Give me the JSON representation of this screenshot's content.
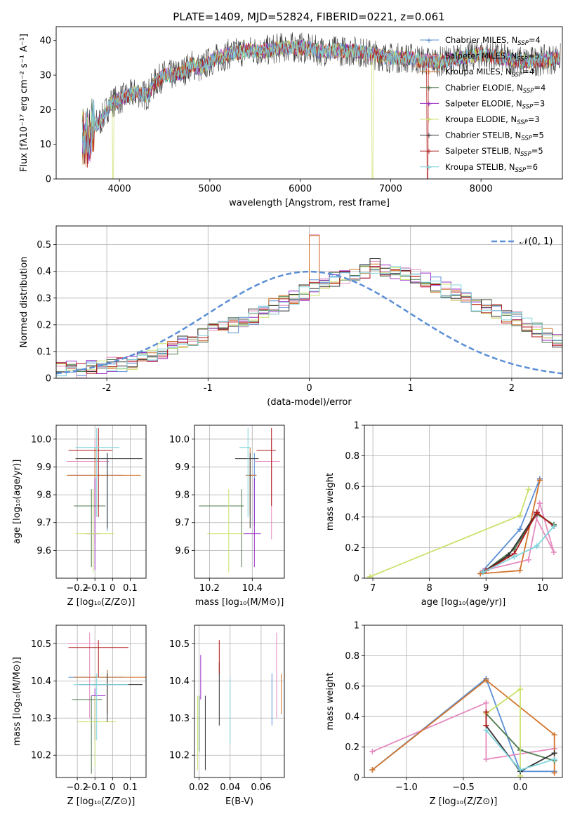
{
  "title": "PLATE=1409, MJD=52824, FIBERID=0221, z=0.061",
  "colors": {
    "chabrier_miles": "#5b8fd6",
    "salpeter_miles": "#e58bc0",
    "kroupa_miles": "#d2762e",
    "chabrier_elodie": "#4e7a4e",
    "salpeter_elodie": "#9b32c8",
    "kroupa_elodie": "#c9e26b",
    "chabrier_stelib": "#333333",
    "salpeter_stelib": "#b01818",
    "kroupa_stelib": "#7fd4dc",
    "gauss": "#5b8fd6",
    "grid": "#b0b0b0"
  },
  "legend_spectrum": [
    {
      "name": "Chabrier MILES, N",
      "sub": "SSP",
      "suffix": "=4",
      "color": "chabrier_miles"
    },
    {
      "name": "Salpeter MILES, N",
      "sub": "SSP",
      "suffix": "=5",
      "color": "salpeter_miles"
    },
    {
      "name": "Kroupa MILES, N",
      "sub": "SSP",
      "suffix": "=4",
      "color": "kroupa_miles"
    },
    {
      "name": "Chabrier ELODIE, N",
      "sub": "SSP",
      "suffix": "=4",
      "color": "chabrier_elodie"
    },
    {
      "name": "Salpeter ELODIE, N",
      "sub": "SSP",
      "suffix": "=3",
      "color": "salpeter_elodie"
    },
    {
      "name": "Kroupa ELODIE, N",
      "sub": "SSP",
      "suffix": "=3",
      "color": "kroupa_elodie"
    },
    {
      "name": "Chabrier STELIB, N",
      "sub": "SSP",
      "suffix": "=5",
      "color": "chabrier_stelib"
    },
    {
      "name": "Salpeter STELIB, N",
      "sub": "SSP",
      "suffix": "=5",
      "color": "salpeter_stelib"
    },
    {
      "name": "Kroupa STELIB, N",
      "sub": "SSP",
      "suffix": "=6",
      "color": "kroupa_stelib"
    }
  ],
  "chart_data": [
    {
      "id": "spectrum",
      "type": "line",
      "xlabel": "wavelength [Angstrom, rest frame]",
      "ylabel": "Flux [fλ10⁻¹⁷ erg cm⁻² s⁻¹ A⁻¹]",
      "xlim": [
        3300,
        8900
      ],
      "ylim": [
        0,
        44
      ],
      "xticks": [
        4000,
        5000,
        6000,
        7000,
        8000
      ],
      "yticks": [
        0,
        10,
        20,
        30,
        40
      ],
      "data_x_range": [
        3590,
        8880
      ],
      "series_trend": {
        "x": [
          3590,
          3650,
          3700,
          3800,
          3900,
          4000,
          4100,
          4200,
          4300,
          4400,
          4500,
          4600,
          4700,
          4800,
          4900,
          5000,
          5200,
          5400,
          5600,
          5800,
          6000,
          6200,
          6400,
          6600,
          6800,
          7000,
          7200,
          7400,
          7600,
          7800,
          8000,
          8200,
          8400,
          8600,
          8880
        ],
        "y": [
          12,
          11,
          15,
          17,
          22,
          23,
          24,
          25,
          24,
          28,
          30,
          30,
          31,
          33,
          32,
          34,
          36,
          37,
          37,
          38,
          38,
          37,
          37,
          37,
          36,
          35,
          35,
          34,
          34,
          35,
          36,
          35,
          34,
          34,
          35
        ]
      },
      "dips": [
        {
          "series": "kroupa_elodie",
          "x": 3930,
          "y": 0
        },
        {
          "series": "kroupa_elodie",
          "x": 6800,
          "y": 0
        },
        {
          "series": "salpeter_stelib",
          "x": 7410,
          "y": 0
        }
      ]
    },
    {
      "id": "residual_hist",
      "type": "step",
      "xlabel": "(data-model)/error",
      "ylabel": "Normed distribution",
      "xlim": [
        -2.5,
        2.5
      ],
      "ylim": [
        0,
        0.57
      ],
      "xticks": [
        -2,
        -1,
        0,
        1,
        2
      ],
      "yticks": [
        0.0,
        0.1,
        0.2,
        0.3,
        0.4,
        0.5
      ],
      "legend": "𝒩(0, 1)",
      "bin_width": 0.1,
      "bin_start": -2.5,
      "base": [
        0.03,
        0.04,
        0.03,
        0.04,
        0.04,
        0.05,
        0.05,
        0.06,
        0.07,
        0.09,
        0.1,
        0.11,
        0.13,
        0.14,
        0.16,
        0.18,
        0.19,
        0.2,
        0.22,
        0.23,
        0.25,
        0.27,
        0.28,
        0.3,
        0.32,
        0.34,
        0.36,
        0.37,
        0.38,
        0.39,
        0.4,
        0.42,
        0.41,
        0.4,
        0.39,
        0.38,
        0.37,
        0.35,
        0.33,
        0.32,
        0.3,
        0.28,
        0.27,
        0.25,
        0.23,
        0.22,
        0.2,
        0.18,
        0.16,
        0.14,
        0.13,
        0.12,
        0.1,
        0.09,
        0.08,
        0.07,
        0.06,
        0.05,
        0.04,
        0.04
      ],
      "peak_bin": {
        "x": 0.0,
        "y": 0.54
      }
    },
    {
      "id": "age_vs_Z",
      "type": "errorbar",
      "xlabel": "Z [log₁₀(Z/Z⊙)]",
      "ylabel": "age  [log₁₀(age/yr)]",
      "xlim": [
        -0.32,
        0.19
      ],
      "ylim": [
        9.5,
        10.05
      ],
      "xticks": [
        -0.2,
        -0.1,
        0.0,
        0.1
      ],
      "ytick_labels": [
        "9.6",
        "9.7",
        "9.8",
        "9.9",
        "10.0"
      ],
      "points": [
        {
          "s": "chabrier_miles",
          "x": -0.03,
          "xerr": [
            0.22,
            0.09
          ],
          "y": 9.87,
          "yerr": [
            0.2,
            0.08
          ]
        },
        {
          "s": "salpeter_miles",
          "x": -0.1,
          "xerr": [
            0.16,
            0.08
          ],
          "y": 9.92,
          "yerr": [
            0.3,
            0.08
          ]
        },
        {
          "s": "kroupa_miles",
          "x": -0.1,
          "xerr": [
            0.16,
            0.26
          ],
          "y": 9.87,
          "yerr": [
            0.15,
            0.1
          ]
        },
        {
          "s": "chabrier_elodie",
          "x": -0.12,
          "xerr": [
            0.1,
            0.08
          ],
          "y": 9.76,
          "yerr": [
            0.22,
            0.06
          ]
        },
        {
          "s": "salpeter_elodie",
          "x": -0.1,
          "xerr": [
            0.05,
            0.03
          ],
          "y": 9.66,
          "yerr": [
            0.13,
            0.2
          ]
        },
        {
          "s": "kroupa_elodie",
          "x": -0.11,
          "xerr": [
            0.1,
            0.12
          ],
          "y": 9.66,
          "yerr": [
            0.14,
            0.16
          ]
        },
        {
          "s": "chabrier_stelib",
          "x": -0.03,
          "xerr": [
            0.18,
            0.2
          ],
          "y": 9.93,
          "yerr": [
            0.25,
            0.02
          ]
        },
        {
          "s": "salpeter_stelib",
          "x": -0.08,
          "xerr": [
            0.17,
            0.08
          ],
          "y": 9.96,
          "yerr": [
            0.24,
            0.08
          ]
        },
        {
          "s": "kroupa_stelib",
          "x": -0.09,
          "xerr": [
            0.12,
            0.13
          ],
          "y": 9.97,
          "yerr": [
            0.25,
            0.07
          ]
        }
      ]
    },
    {
      "id": "age_vs_mass",
      "type": "errorbar",
      "xlabel": "mass [log₁₀(M/M⊙)]",
      "ylabel": "",
      "xlim": [
        10.13,
        10.55
      ],
      "ylim": [
        9.5,
        10.05
      ],
      "xticks": [
        10.2,
        10.4
      ],
      "ytick_labels": [
        "9.6",
        "9.7",
        "9.8",
        "9.9",
        "10.0"
      ],
      "points": [
        {
          "s": "chabrier_miles",
          "x": 10.41,
          "xerr": [
            0.04,
            0.01
          ],
          "y": 9.87,
          "yerr": [
            0.18,
            0.08
          ]
        },
        {
          "s": "salpeter_miles",
          "x": 10.49,
          "xerr": [
            0.08,
            0.04
          ],
          "y": 9.92,
          "yerr": [
            0.28,
            0.08
          ]
        },
        {
          "s": "kroupa_miles",
          "x": 10.39,
          "xerr": [
            0.02,
            0.03
          ],
          "y": 9.87,
          "yerr": [
            0.14,
            0.1
          ]
        },
        {
          "s": "chabrier_elodie",
          "x": 10.35,
          "xerr": [
            0.2,
            0.01
          ],
          "y": 9.76,
          "yerr": [
            0.22,
            0.06
          ]
        },
        {
          "s": "salpeter_elodie",
          "x": 10.41,
          "xerr": [
            0.05,
            0.03
          ],
          "y": 9.66,
          "yerr": [
            0.12,
            0.2
          ]
        },
        {
          "s": "kroupa_elodie",
          "x": 10.29,
          "xerr": [
            0.1,
            0.07
          ],
          "y": 9.66,
          "yerr": [
            0.14,
            0.16
          ]
        },
        {
          "s": "chabrier_stelib",
          "x": 10.39,
          "xerr": [
            0.07,
            0.04
          ],
          "y": 9.93,
          "yerr": [
            0.25,
            0.02
          ]
        },
        {
          "s": "salpeter_stelib",
          "x": 10.49,
          "xerr": [
            0.07,
            0.02
          ],
          "y": 9.96,
          "yerr": [
            0.2,
            0.08
          ]
        },
        {
          "s": "kroupa_stelib",
          "x": 10.38,
          "xerr": [
            0.04,
            0.01
          ],
          "y": 9.97,
          "yerr": [
            0.25,
            0.07
          ]
        }
      ]
    },
    {
      "id": "weight_vs_age",
      "type": "line",
      "xlabel": "age  [log₁₀(age/yr)]",
      "ylabel": "mass weight",
      "xlim": [
        6.85,
        10.35
      ],
      "ylim": [
        0,
        1.0
      ],
      "xticks": [
        7,
        8,
        9,
        10
      ],
      "yticks": [
        0.0,
        0.2,
        0.4,
        0.6,
        0.8,
        1.0
      ],
      "series": [
        {
          "s": "chabrier_miles",
          "x": [
            8.9,
            9.6,
            9.95
          ],
          "y": [
            0.03,
            0.32,
            0.65
          ]
        },
        {
          "s": "salpeter_miles",
          "x": [
            8.95,
            9.75,
            9.95,
            10.2,
            9.85
          ],
          "y": [
            0.05,
            0.12,
            0.49,
            0.17,
            0.42
          ]
        },
        {
          "s": "kroupa_miles",
          "x": [
            8.9,
            9.6,
            9.95
          ],
          "y": [
            0.03,
            0.05,
            0.64
          ]
        },
        {
          "s": "chabrier_elodie",
          "x": [
            8.95,
            9.5,
            9.9,
            10.2
          ],
          "y": [
            0.04,
            0.19,
            0.42,
            0.35
          ]
        },
        {
          "s": "kroupa_elodie",
          "x": [
            6.95,
            9.6,
            9.75
          ],
          "y": [
            0.01,
            0.41,
            0.58
          ]
        },
        {
          "s": "chabrier_stelib",
          "x": [
            8.95,
            9.4,
            9.9,
            10.2
          ],
          "y": [
            0.04,
            0.15,
            0.43,
            0.34
          ]
        },
        {
          "s": "salpeter_stelib",
          "x": [
            9.0,
            9.5,
            9.9,
            10.2
          ],
          "y": [
            0.05,
            0.16,
            0.43,
            0.34
          ]
        },
        {
          "s": "kroupa_stelib",
          "x": [
            8.95,
            9.5,
            9.9,
            10.2
          ],
          "y": [
            0.04,
            0.14,
            0.21,
            0.34
          ]
        }
      ]
    },
    {
      "id": "mass_vs_Z",
      "type": "errorbar",
      "xlabel": "Z [log₁₀(Z/Z⊙)]",
      "ylabel": "mass [log₁₀(M/M⊙)]",
      "xlim": [
        -0.32,
        0.19
      ],
      "ylim": [
        10.14,
        10.55
      ],
      "xticks": [
        -0.2,
        -0.1,
        0.0,
        0.1
      ],
      "ytick_labels": [
        "10.2",
        "10.3",
        "10.4",
        "10.5"
      ],
      "points": [
        {
          "s": "chabrier_miles",
          "x": -0.03,
          "xerr": [
            0.22,
            0.09
          ],
          "y": 10.41,
          "yerr": [
            0.1,
            0.02
          ]
        },
        {
          "s": "salpeter_miles",
          "x": -0.13,
          "xerr": [
            0.13,
            0.06
          ],
          "y": 10.5,
          "yerr": [
            0.2,
            0.03
          ]
        },
        {
          "s": "kroupa_miles",
          "x": -0.03,
          "xerr": [
            0.19,
            0.22
          ],
          "y": 10.41,
          "yerr": [
            0.1,
            0.02
          ]
        },
        {
          "s": "chabrier_elodie",
          "x": -0.12,
          "xerr": [
            0.11,
            0.06
          ],
          "y": 10.35,
          "yerr": [
            0.2,
            0.01
          ]
        },
        {
          "s": "salpeter_elodie",
          "x": -0.1,
          "xerr": [
            0.02,
            0.06
          ],
          "y": 10.36,
          "yerr": [
            0.12,
            0.02
          ]
        },
        {
          "s": "kroupa_elodie",
          "x": -0.1,
          "xerr": [
            0.1,
            0.12
          ],
          "y": 10.29,
          "yerr": [
            0.12,
            0.07
          ]
        },
        {
          "s": "chabrier_stelib",
          "x": -0.03,
          "xerr": [
            0.16,
            0.2
          ],
          "y": 10.39,
          "yerr": [
            0.1,
            0.03
          ]
        },
        {
          "s": "salpeter_stelib",
          "x": -0.08,
          "xerr": [
            0.17,
            0.17
          ],
          "y": 10.49,
          "yerr": [
            0.08,
            0.02
          ]
        },
        {
          "s": "kroupa_stelib",
          "x": -0.09,
          "xerr": [
            0.13,
            0.18
          ],
          "y": 10.39,
          "yerr": [
            0.15,
            0.03
          ]
        }
      ]
    },
    {
      "id": "mass_vs_ebv",
      "type": "errorbar",
      "xlabel": "E(B-V)",
      "ylabel": "",
      "xlim": [
        0.017,
        0.075
      ],
      "ylim": [
        10.14,
        10.55
      ],
      "xtick_labels": [
        "0.02",
        "0.04",
        "0.06"
      ],
      "xticks": [
        0.02,
        0.04,
        0.06
      ],
      "ytick_labels": [
        "10.2",
        "10.3",
        "10.4",
        "10.5"
      ],
      "points": [
        {
          "s": "chabrier_miles",
          "x": 0.067,
          "xerr": [
            0,
            0
          ],
          "y": 10.35,
          "yerr": [
            0.07,
            0.07
          ]
        },
        {
          "s": "salpeter_miles",
          "x": 0.07,
          "xerr": [
            0,
            0
          ],
          "y": 10.4,
          "yerr": [
            0.1,
            0.13
          ]
        },
        {
          "s": "kroupa_miles",
          "x": 0.073,
          "xerr": [
            0,
            0
          ],
          "y": 10.37,
          "yerr": [
            0.06,
            0.05
          ]
        },
        {
          "s": "chabrier_elodie",
          "x": 0.02,
          "xerr": [
            0,
            0
          ],
          "y": 10.26,
          "yerr": [
            0.05,
            0.1
          ]
        },
        {
          "s": "salpeter_elodie",
          "x": 0.021,
          "xerr": [
            0,
            0
          ],
          "y": 10.42,
          "yerr": [
            0.07,
            0.05
          ]
        },
        {
          "s": "kroupa_elodie",
          "x": 0.019,
          "xerr": [
            0,
            0
          ],
          "y": 10.25,
          "yerr": [
            0.09,
            0.11
          ]
        },
        {
          "s": "chabrier_stelib",
          "x": 0.033,
          "xerr": [
            0,
            0
          ],
          "y": 10.36,
          "yerr": [
            0.08,
            0.09
          ]
        },
        {
          "s": "salpeter_stelib",
          "x": 0.033,
          "xerr": [
            0,
            0
          ],
          "y": 10.47,
          "yerr": [
            0.05,
            0.04
          ]
        },
        {
          "s": "kroupa_stelib",
          "x": 0.04,
          "xerr": [
            0,
            0
          ],
          "y": 10.32,
          "yerr": [
            0.09,
            0.09
          ]
        },
        {
          "s": "chabrier_stelib",
          "x": 0.024,
          "xerr": [
            0,
            0
          ],
          "y": 10.26,
          "yerr": [
            0.1,
            0.1
          ]
        }
      ]
    },
    {
      "id": "weight_vs_Z",
      "type": "line",
      "xlabel": "Z [log₁₀(Z/Z⊙)]",
      "ylabel": "mass weight",
      "xlim": [
        -1.37,
        0.37
      ],
      "ylim": [
        0,
        1.0
      ],
      "xticks": [
        -1.0,
        -0.5,
        0.0
      ],
      "xtick_labels": [
        "−1.0",
        "−0.5",
        "0.0"
      ],
      "yticks": [
        0.0,
        0.2,
        0.4,
        0.6,
        0.8,
        1.0
      ],
      "series": [
        {
          "s": "chabrier_miles",
          "x": [
            -1.3,
            -0.3,
            0.0,
            0.3
          ],
          "y": [
            0.05,
            0.65,
            0.04,
            0.04
          ]
        },
        {
          "s": "salpeter_miles",
          "x": [
            -1.3,
            -0.3,
            -0.3,
            0.3
          ],
          "y": [
            0.17,
            0.49,
            0.12,
            0.19
          ]
        },
        {
          "s": "kroupa_miles",
          "x": [
            -1.3,
            -0.3,
            0.3,
            0.3
          ],
          "y": [
            0.05,
            0.64,
            0.28,
            0.03
          ]
        },
        {
          "s": "chabrier_elodie",
          "x": [
            -0.3,
            0.0,
            0.3
          ],
          "y": [
            0.42,
            0.18,
            0.11
          ]
        },
        {
          "s": "kroupa_elodie",
          "x": [
            -0.3,
            0.0,
            0.0
          ],
          "y": [
            0.42,
            0.58,
            0.01
          ]
        },
        {
          "s": "chabrier_stelib",
          "x": [
            -0.3,
            0.0,
            0.3
          ],
          "y": [
            0.34,
            0.04,
            0.16
          ]
        },
        {
          "s": "salpeter_stelib",
          "x": [
            -0.3,
            -0.3
          ],
          "y": [
            0.34,
            0.43
          ]
        },
        {
          "s": "kroupa_stelib",
          "x": [
            -0.3,
            0.0,
            0.3
          ],
          "y": [
            0.31,
            0.05,
            0.12
          ]
        }
      ]
    }
  ]
}
